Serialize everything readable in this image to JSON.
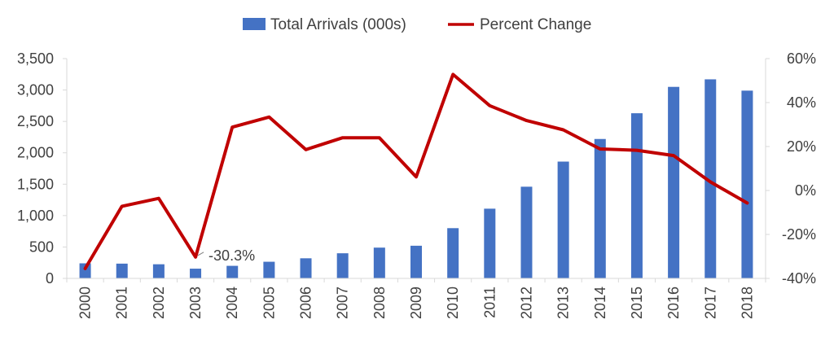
{
  "chart_data": {
    "type": "bar",
    "categories": [
      "2000",
      "2001",
      "2002",
      "2003",
      "2004",
      "2005",
      "2006",
      "2007",
      "2008",
      "2009",
      "2010",
      "2011",
      "2012",
      "2013",
      "2014",
      "2015",
      "2016",
      "2017",
      "2018"
    ],
    "series": [
      {
        "name": "Total Arrivals (000s)",
        "type": "bar",
        "axis": "left",
        "color": "#4472C4",
        "values": [
          240,
          235,
          225,
          155,
          200,
          265,
          320,
          400,
          490,
          520,
          800,
          1110,
          1460,
          1860,
          2220,
          2630,
          3050,
          3170,
          2990
        ]
      },
      {
        "name": "Percent Change",
        "type": "line",
        "axis": "right",
        "color": "#C00000",
        "values": [
          -35.5,
          -7.2,
          -3.6,
          -30.3,
          28.8,
          33.4,
          18.6,
          24.0,
          24.0,
          6.2,
          52.8,
          38.6,
          31.8,
          27.6,
          18.9,
          18.3,
          15.9,
          3.9,
          -5.7
        ]
      }
    ],
    "y_left": {
      "ylim": [
        0,
        3500
      ],
      "ticks": [
        "0",
        "500",
        "1,000",
        "1,500",
        "2,000",
        "2,500",
        "3,000",
        "3,500"
      ]
    },
    "y_right": {
      "ylim": [
        -40,
        60
      ],
      "ticks": [
        "-40%",
        "-20%",
        "0%",
        "20%",
        "40%",
        "60%"
      ]
    },
    "annotation": {
      "text": "-30.3%",
      "category": "2003"
    },
    "legend": {
      "position": "top-center"
    },
    "grid": false,
    "title": "",
    "xlabel": "",
    "ylabel": ""
  }
}
